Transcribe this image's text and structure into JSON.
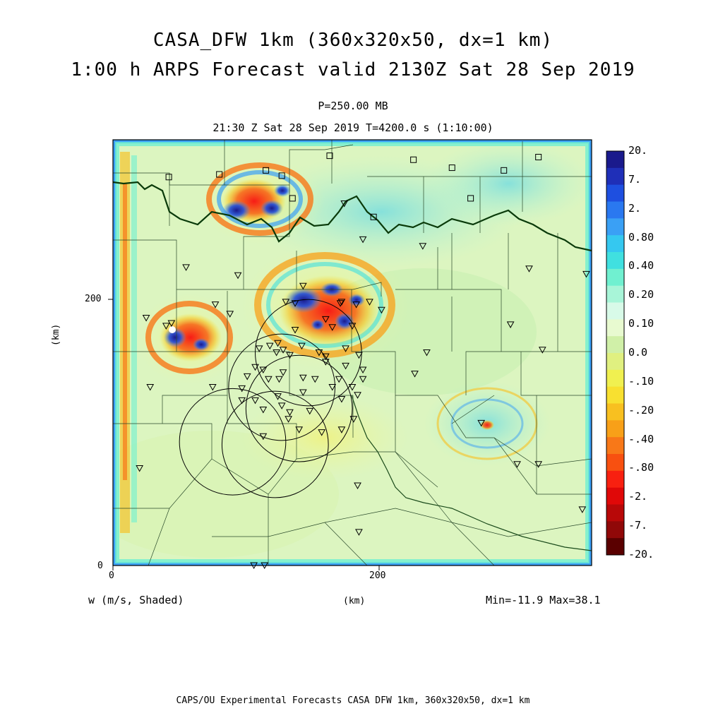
{
  "title": {
    "line1": "CASA_DFW 1km (360x320x50, dx=1 km)",
    "line2": "1:00 h ARPS Forecast valid 2130Z Sat 28 Sep 2019"
  },
  "level": "P=250.00 MB",
  "time_line": "21:30 Z Sat 28 Sep 2019   T=4200.0 s (1:10:00)",
  "variable_label": "w (m/s, Shaded)",
  "x_unit": "(km)",
  "y_unit": "(km)",
  "x_ticks": [
    "0",
    "200"
  ],
  "y_ticks": [
    "0",
    "200"
  ],
  "min_max": "Min=-11.9  Max=38.1",
  "footer": "CAPS/OU Experimental Forecasts  CASA DFW 1km, 360x320x50, dx=1 km",
  "colorbar": {
    "labels": [
      "20.",
      "7.",
      "2.",
      "0.80",
      "0.40",
      "0.20",
      "0.10",
      "0.0",
      "-.10",
      "-.20",
      "-.40",
      "-.80",
      "-2.",
      "-7.",
      "-20."
    ],
    "colors": [
      "#1a1a8c",
      "#1f2fb8",
      "#1e4fe0",
      "#2a78f0",
      "#3aa0f5",
      "#35c8f0",
      "#40e0e0",
      "#70f0d0",
      "#a8f5d8",
      "#d8fae8",
      "#e8fad0",
      "#d0f0a8",
      "#e0f080",
      "#f0f050",
      "#f8e030",
      "#f8c020",
      "#f8a018",
      "#f87818",
      "#f85010",
      "#f82010",
      "#e00808",
      "#b80808",
      "#900808",
      "#5a0000"
    ]
  },
  "map_data": {
    "x_range_km": [
      0,
      360
    ],
    "y_range_km": [
      0,
      320
    ],
    "square_stations": [
      [
        42,
        292
      ],
      [
        80,
        294
      ],
      [
        115,
        297
      ],
      [
        127,
        293
      ],
      [
        163,
        308
      ],
      [
        135,
        276
      ],
      [
        196,
        262
      ],
      [
        226,
        305
      ],
      [
        255,
        299
      ],
      [
        294,
        297
      ],
      [
        320,
        307
      ],
      [
        269,
        276
      ]
    ],
    "triangle_stations": [
      [
        55,
        224
      ],
      [
        94,
        218
      ],
      [
        25,
        186
      ],
      [
        77,
        196
      ],
      [
        165,
        179
      ],
      [
        180,
        180
      ],
      [
        193,
        198
      ],
      [
        143,
        210
      ],
      [
        137,
        197
      ],
      [
        183,
        196
      ],
      [
        171,
        197
      ],
      [
        160,
        185
      ],
      [
        130,
        198
      ],
      [
        172,
        198
      ],
      [
        137,
        177
      ],
      [
        88,
        189
      ],
      [
        188,
        245
      ],
      [
        174,
        272
      ],
      [
        233,
        240
      ],
      [
        313,
        223
      ],
      [
        356,
        219
      ],
      [
        299,
        181
      ],
      [
        323,
        162
      ],
      [
        236,
        160
      ],
      [
        227,
        144
      ],
      [
        20,
        73
      ],
      [
        40,
        180
      ],
      [
        124,
        167
      ],
      [
        118,
        165
      ],
      [
        142,
        165
      ],
      [
        160,
        153
      ],
      [
        175,
        150
      ],
      [
        188,
        147
      ],
      [
        188,
        140
      ],
      [
        185,
        158
      ],
      [
        175,
        163
      ],
      [
        160,
        157
      ],
      [
        155,
        160
      ],
      [
        133,
        158
      ],
      [
        128,
        162
      ],
      [
        123,
        160
      ],
      [
        110,
        163
      ],
      [
        107,
        149
      ],
      [
        113,
        147
      ],
      [
        128,
        145
      ],
      [
        125,
        140
      ],
      [
        117,
        140
      ],
      [
        101,
        142
      ],
      [
        152,
        140
      ],
      [
        143,
        141
      ],
      [
        170,
        140
      ],
      [
        180,
        134
      ],
      [
        184,
        128
      ],
      [
        165,
        134
      ],
      [
        172,
        125
      ],
      [
        143,
        130
      ],
      [
        113,
        117
      ],
      [
        133,
        115
      ],
      [
        148,
        116
      ],
      [
        107,
        124
      ],
      [
        97,
        124
      ],
      [
        127,
        120
      ],
      [
        124,
        127
      ],
      [
        172,
        102
      ],
      [
        157,
        100
      ],
      [
        140,
        102
      ],
      [
        132,
        110
      ],
      [
        113,
        97
      ],
      [
        28,
        134
      ],
      [
        75,
        134
      ],
      [
        97,
        133
      ],
      [
        181,
        110
      ],
      [
        277,
        107
      ],
      [
        304,
        76
      ],
      [
        320,
        76
      ],
      [
        353,
        42
      ],
      [
        184,
        60
      ],
      [
        185,
        25
      ],
      [
        106,
        0
      ],
      [
        114,
        0
      ],
      [
        44,
        182
      ],
      [
        202,
        192
      ]
    ],
    "ring_centers_km": [
      [
        147,
        160
      ],
      [
        127,
        134
      ],
      [
        140,
        118
      ],
      [
        122,
        91
      ],
      [
        90,
        93
      ]
    ],
    "ring_radius_km": 40
  }
}
